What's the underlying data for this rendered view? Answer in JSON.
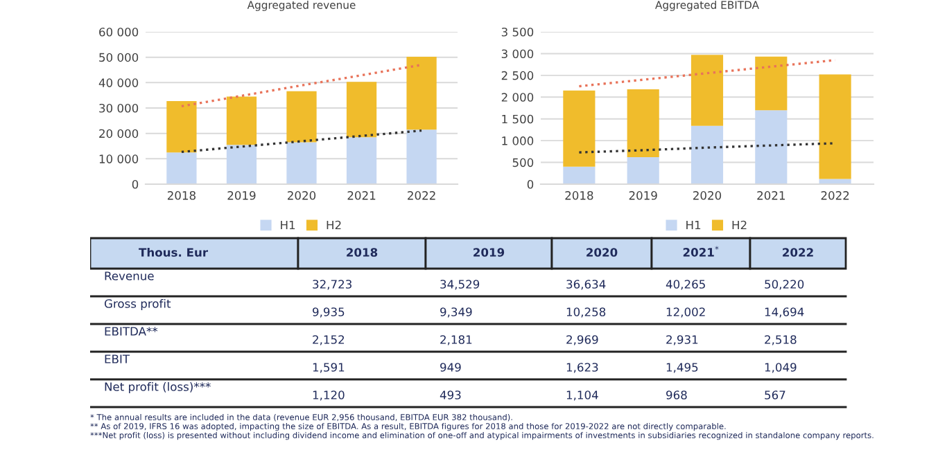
{
  "chart_data": [
    {
      "type": "bar",
      "title": "Aggregated revenue",
      "categories": [
        "2018",
        "2019",
        "2020",
        "2021",
        "2022"
      ],
      "stacked": true,
      "grid": "y",
      "legend": "bottom",
      "ylim": [
        0,
        60000
      ],
      "yticks": [
        0,
        {
          "value": 10000,
          "label": "10 000"
        },
        {
          "value": 20000,
          "label": "20 000"
        },
        {
          "value": 30000,
          "label": "30 000"
        },
        {
          "value": 40000,
          "label": "40 000"
        },
        {
          "value": 50000,
          "label": "50 000"
        },
        {
          "value": 60000,
          "label": "60 000"
        }
      ],
      "series": [
        {
          "name": "H1",
          "color": "#c5d7f2",
          "values": [
            12500,
            15500,
            16500,
            18500,
            21500
          ]
        },
        {
          "name": "H2",
          "color": "#f0bc2c",
          "values": [
            20200,
            19000,
            20100,
            21800,
            28700
          ]
        },
        {
          "type": "line",
          "color": "#333333",
          "line_style": "dotted",
          "values": [
            12700,
            14800,
            16900,
            19000,
            21100
          ]
        },
        {
          "type": "line",
          "color": "#e8735a",
          "line_style": "dotted",
          "values": [
            30700,
            34800,
            38900,
            42900,
            47000
          ]
        }
      ]
    },
    {
      "type": "bar",
      "title": "Aggregated EBITDA",
      "categories": [
        "2018",
        "2019",
        "2020",
        "2021",
        "2022"
      ],
      "stacked": true,
      "grid": "y",
      "legend": "bottom",
      "ylim": [
        0,
        3500
      ],
      "yticks": [
        0,
        500,
        {
          "value": 1000,
          "label": "1 000"
        },
        {
          "value": 1500,
          "label": "1 500"
        },
        {
          "value": 2000,
          "label": "2 000"
        },
        {
          "value": 2500,
          "label": "2 500"
        },
        {
          "value": 3000,
          "label": "3 000"
        },
        {
          "value": 3500,
          "label": "3 500"
        }
      ],
      "series": [
        {
          "name": "H1",
          "color": "#c5d7f2",
          "values": [
            400,
            620,
            1340,
            1700,
            120
          ]
        },
        {
          "name": "H2",
          "color": "#f0bc2c",
          "values": [
            1750,
            1560,
            1630,
            1230,
            2400
          ]
        },
        {
          "type": "line",
          "color": "#333333",
          "line_style": "dotted",
          "values": [
            730,
            780,
            840,
            890,
            940
          ]
        },
        {
          "type": "line",
          "color": "#e8735a",
          "line_style": "dotted",
          "values": [
            2250,
            2400,
            2550,
            2700,
            2850
          ]
        }
      ]
    },
    {
      "type": "other",
      "categories": [
        "Thous. Eur",
        "2018",
        "2019",
        "2020",
        "2021$^{*}$",
        "2022"
      ],
      "y_categories": [
        "Revenue",
        "Gross profit",
        "EBITDA**",
        "EBIT",
        "Net profit (loss)***"
      ],
      "cell_labels": [
        [
          "32,723",
          "34,529",
          "36,634",
          "40,265",
          "50,220"
        ],
        [
          "9,935",
          "9,349",
          "10,258",
          "12,002",
          "14,694"
        ],
        [
          "2,152",
          "2,181",
          "2,969",
          "2,931",
          "2,518"
        ],
        [
          "1,591",
          "949",
          "1,623",
          "1,495",
          "1,049"
        ],
        [
          "1,120",
          "493",
          "1,104",
          "968",
          "567"
        ]
      ],
      "annotations": [
        "* The annual results are included in the data (revenue EUR 2,956 thousand, EBITDA EUR 382 thousand).",
        "** As of 2019, IFRS 16 was adopted, impacting the size of EBITDA. As a result, EBITDA figures for 2018 and those for 2019-2022 are not directly comparable.",
        "***Net profit (loss) is presented without including dividend income and elimination of one-off and atypical impairments of investments in subsidiaries recognized in standalone company reports."
      ]
    }
  ]
}
